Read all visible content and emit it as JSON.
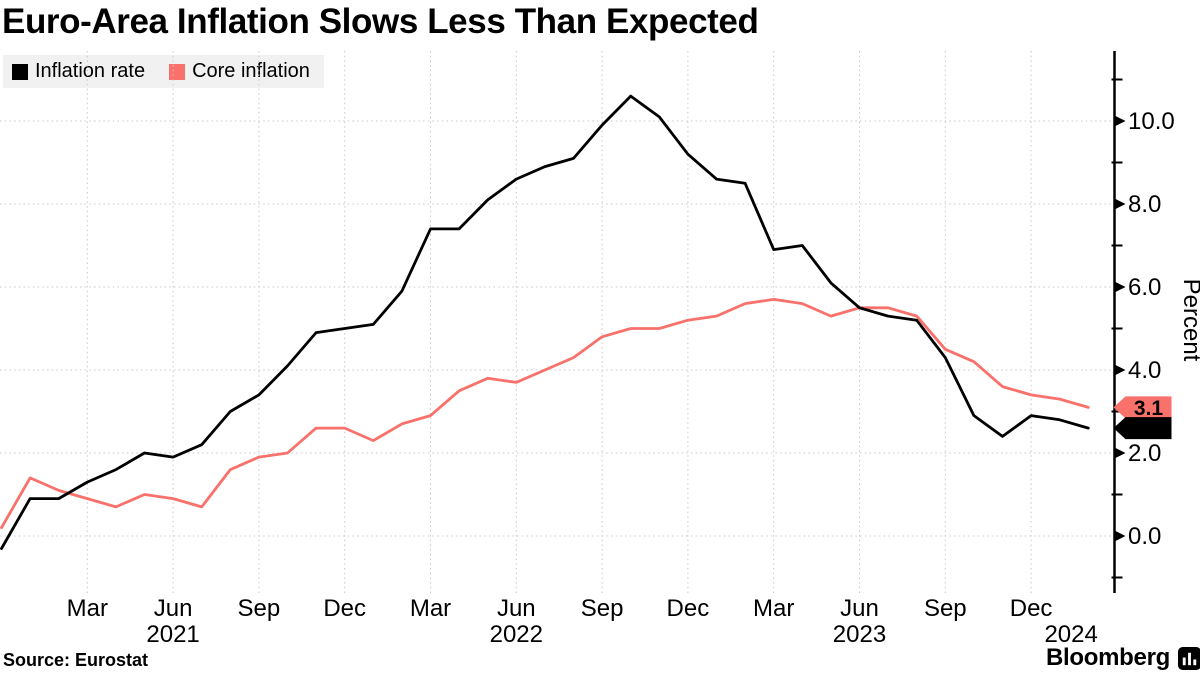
{
  "header": {
    "title": "Euro-Area Inflation Slows Less Than Expected"
  },
  "legend": {
    "items": [
      {
        "label": "Inflation rate",
        "color": "#000000"
      },
      {
        "label": "Core inflation",
        "color": "#F8716B"
      }
    ]
  },
  "chart_data": {
    "type": "line",
    "title": "Euro-Area Inflation Slows Less Than Expected",
    "ylabel": "Percent",
    "x_start": "Dec 2020",
    "x_end": "Feb 2024",
    "x_unit": "month",
    "ylim": [
      -1.4,
      11.6
    ],
    "grid": true,
    "legend_position": "top-left",
    "y_axis_side": "right",
    "y_ticks": [
      {
        "label": "0.0",
        "value": 0
      },
      {
        "label": "2.0",
        "value": 2
      },
      {
        "label": "4.0",
        "value": 4
      },
      {
        "label": "6.0",
        "value": 6
      },
      {
        "label": "8.0",
        "value": 8
      },
      {
        "label": "10.0",
        "value": 10
      }
    ],
    "y_minor_ticks": [
      -1,
      1,
      3,
      5,
      7,
      9,
      11
    ],
    "x_tick_months": [
      {
        "label": "Mar",
        "m": 3
      },
      {
        "label": "Jun",
        "m": 6
      },
      {
        "label": "Sep",
        "m": 9
      },
      {
        "label": "Dec",
        "m": 12
      },
      {
        "label": "Mar",
        "m": 15
      },
      {
        "label": "Jun",
        "m": 18
      },
      {
        "label": "Sep",
        "m": 21
      },
      {
        "label": "Dec",
        "m": 24
      },
      {
        "label": "Mar",
        "m": 27
      },
      {
        "label": "Jun",
        "m": 30
      },
      {
        "label": "Sep",
        "m": 33
      },
      {
        "label": "Dec",
        "m": 36
      }
    ],
    "x_year_labels": [
      {
        "label": "2021",
        "m": 6
      },
      {
        "label": "2022",
        "m": 18
      },
      {
        "label": "2023",
        "m": 30
      },
      {
        "label": "2024",
        "m": 37.4
      }
    ],
    "series": [
      {
        "name": "Inflation rate",
        "color": "#000000",
        "values": [
          -0.3,
          0.9,
          0.9,
          1.3,
          1.6,
          2.0,
          1.9,
          2.2,
          3.0,
          3.4,
          4.1,
          4.9,
          5.0,
          5.1,
          5.9,
          7.4,
          7.4,
          8.1,
          8.6,
          8.9,
          9.1,
          9.9,
          10.6,
          10.1,
          9.2,
          8.6,
          8.5,
          6.9,
          7.0,
          6.1,
          5.5,
          5.3,
          5.2,
          4.3,
          2.9,
          2.4,
          2.9,
          2.8,
          2.6
        ]
      },
      {
        "name": "Core inflation",
        "color": "#F8716B",
        "values": [
          0.2,
          1.4,
          1.1,
          0.9,
          0.7,
          1.0,
          0.9,
          0.7,
          1.6,
          1.9,
          2.0,
          2.6,
          2.6,
          2.3,
          2.7,
          2.9,
          3.5,
          3.8,
          3.7,
          4.0,
          4.3,
          4.8,
          5.0,
          5.0,
          5.2,
          5.3,
          5.6,
          5.7,
          5.6,
          5.3,
          5.5,
          5.5,
          5.3,
          4.5,
          4.2,
          3.6,
          3.4,
          3.3,
          3.1
        ]
      }
    ],
    "end_labels": [
      {
        "text": "3.1",
        "value": 3.1,
        "bg": "#F8716B",
        "fg": "#000000"
      },
      {
        "text": "2.6",
        "value": 2.6,
        "bg": "#000000",
        "fg": "#FFFFFF"
      }
    ]
  },
  "footer": {
    "source": "Source: Eurostat",
    "brand": "Bloomberg"
  }
}
